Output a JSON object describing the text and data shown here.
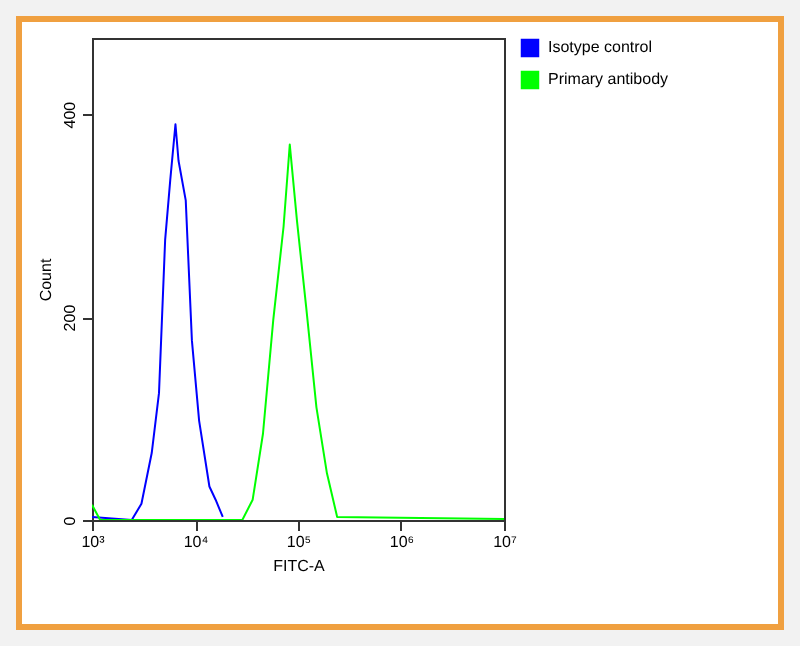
{
  "chart_data": {
    "type": "line",
    "xlabel": "FITC-A",
    "ylabel": "Count",
    "log": "x",
    "grid": false,
    "legend": "top right",
    "xlim": [
      1000,
      10000000
    ],
    "ylim": [
      0,
      475
    ],
    "xticks": [
      {
        "value": 1000,
        "label": "10³"
      },
      {
        "value": 10000,
        "label": "10⁴"
      },
      {
        "value": 100000,
        "label": "10⁵"
      },
      {
        "value": 1000000,
        "label": "10⁶"
      },
      {
        "value": 10000000,
        "label": "10⁷"
      }
    ],
    "yticks": [
      0,
      200,
      400
    ],
    "series": [
      {
        "name": "Isotype control",
        "color": "#0000ff",
        "x": [
          1000,
          2430,
          3020,
          3800,
          4470,
          5130,
          5750,
          6460,
          6920,
          8130,
          9330,
          10960,
          13800,
          15850,
          18600
        ],
        "values": [
          3,
          0,
          16,
          66,
          125,
          276,
          335,
          390,
          354,
          315,
          177,
          98,
          33,
          20,
          3
        ]
      },
      {
        "name": "Primary antibody",
        "color": "#00ff00",
        "x": [
          1000,
          1200,
          28800,
          36300,
          45700,
          57500,
          72400,
          83200,
          97700,
          120000,
          151000,
          191000,
          240000,
          10000000
        ],
        "values": [
          15,
          0,
          0,
          20,
          85,
          197,
          289,
          370,
          295,
          210,
          111,
          46,
          3,
          1
        ]
      }
    ]
  }
}
